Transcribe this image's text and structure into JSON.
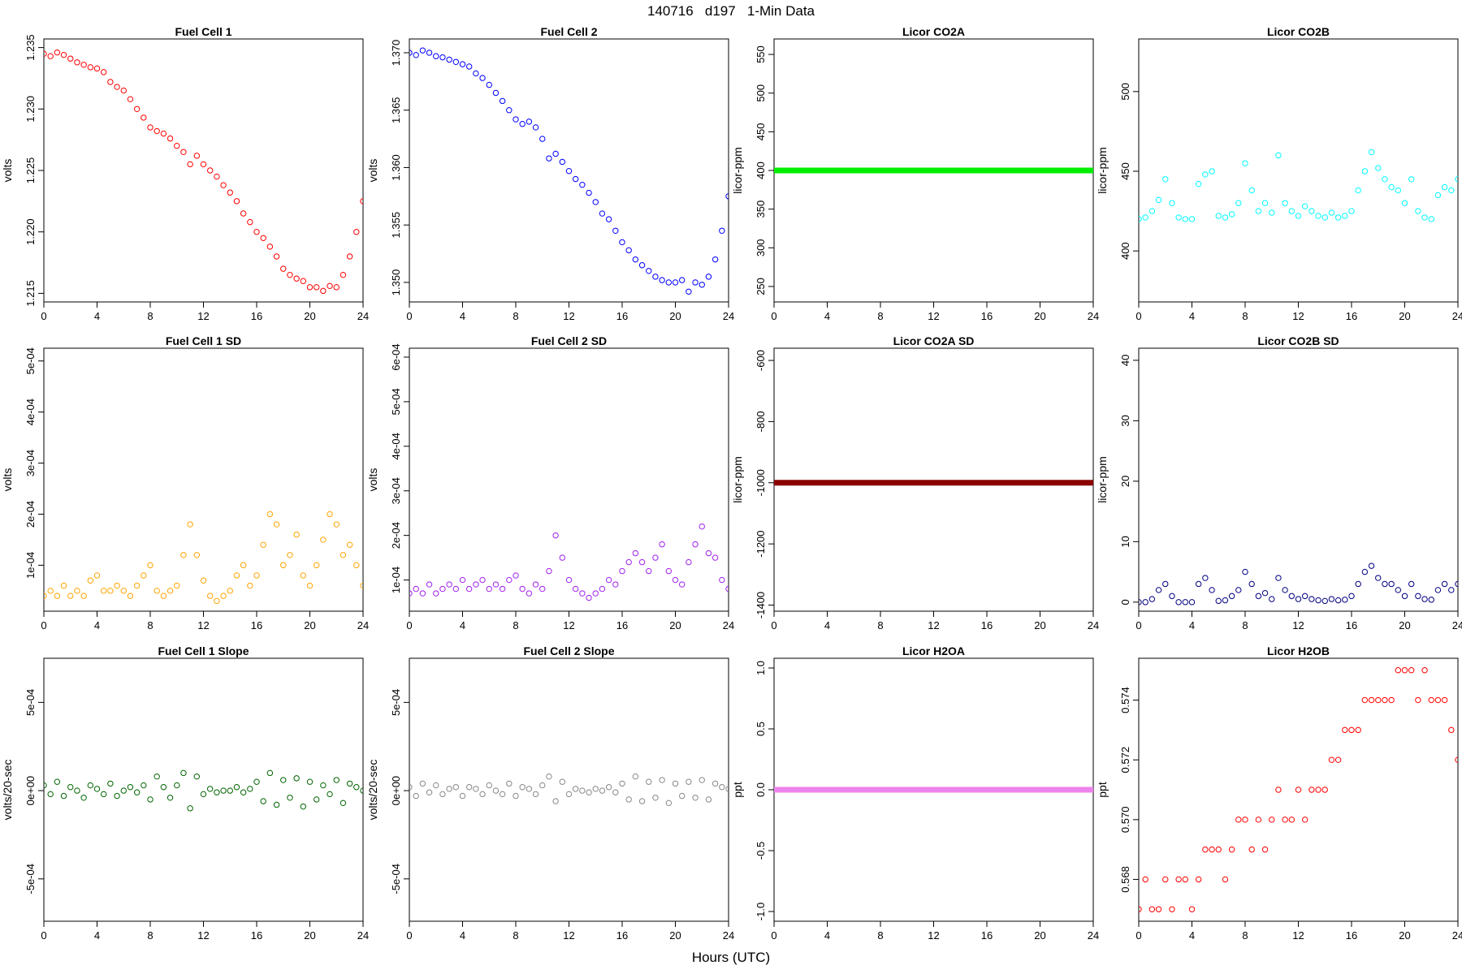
{
  "title": "140716   d197   1-Min Data",
  "xlabel": "Hours (UTC)",
  "chart_data": [
    {
      "type": "scatter",
      "title": "Fuel Cell 1",
      "ylabel": "volts",
      "xlim": [
        0,
        24
      ],
      "ylim": [
        1.2143,
        1.2357
      ],
      "xticks": [
        0,
        4,
        8,
        12,
        16,
        20,
        24
      ],
      "yticks": [
        1.215,
        1.22,
        1.225,
        1.23,
        1.235
      ],
      "ytick_labels": [
        "1.215",
        "1.220",
        "1.225",
        "1.230",
        "1.235"
      ],
      "color": "#ff0000",
      "x": [
        0,
        0.5,
        1,
        1.5,
        2,
        2.5,
        3,
        3.5,
        4,
        4.5,
        5,
        5.5,
        6,
        6.5,
        7,
        7.5,
        8,
        8.5,
        9,
        9.5,
        10,
        10.5,
        11,
        11.5,
        12,
        12.5,
        13,
        13.5,
        14,
        14.5,
        15,
        15.5,
        16,
        16.5,
        17,
        17.5,
        18,
        18.5,
        19,
        19.5,
        20,
        20.5,
        21,
        21.5,
        22,
        22.5,
        23,
        23.5,
        24
      ],
      "y": [
        1.2345,
        1.2343,
        1.2346,
        1.2344,
        1.2341,
        1.2338,
        1.2336,
        1.2334,
        1.2333,
        1.233,
        1.2322,
        1.2318,
        1.2315,
        1.2308,
        1.23,
        1.2293,
        1.2285,
        1.2282,
        1.228,
        1.2276,
        1.227,
        1.2265,
        1.2255,
        1.2262,
        1.2255,
        1.225,
        1.2245,
        1.2238,
        1.2232,
        1.2225,
        1.2215,
        1.2208,
        1.22,
        1.2195,
        1.2188,
        1.218,
        1.217,
        1.2165,
        1.2162,
        1.216,
        1.2155,
        1.2155,
        1.2152,
        1.2156,
        1.2155,
        1.2165,
        1.218,
        1.22,
        1.2225
      ]
    },
    {
      "type": "scatter",
      "title": "Fuel Cell 2",
      "ylabel": "volts",
      "xlim": [
        0,
        24
      ],
      "ylim": [
        1.3483,
        1.3712
      ],
      "xticks": [
        0,
        4,
        8,
        12,
        16,
        20,
        24
      ],
      "yticks": [
        1.35,
        1.355,
        1.36,
        1.365,
        1.37
      ],
      "ytick_labels": [
        "1.350",
        "1.355",
        "1.360",
        "1.365",
        "1.370"
      ],
      "color": "#0000ff",
      "x": [
        0,
        0.5,
        1,
        1.5,
        2,
        2.5,
        3,
        3.5,
        4,
        4.5,
        5,
        5.5,
        6,
        6.5,
        7,
        7.5,
        8,
        8.5,
        9,
        9.5,
        10,
        10.5,
        11,
        11.5,
        12,
        12.5,
        13,
        13.5,
        14,
        14.5,
        15,
        15.5,
        16,
        16.5,
        17,
        17.5,
        18,
        18.5,
        19,
        19.5,
        20,
        20.5,
        21,
        21.5,
        22,
        22.5,
        23,
        23.5,
        24
      ],
      "y": [
        1.37,
        1.3698,
        1.3702,
        1.37,
        1.3697,
        1.3696,
        1.3694,
        1.3692,
        1.369,
        1.3688,
        1.3682,
        1.3678,
        1.3672,
        1.3665,
        1.3658,
        1.365,
        1.3642,
        1.3638,
        1.364,
        1.3635,
        1.3625,
        1.3608,
        1.3612,
        1.3605,
        1.3597,
        1.359,
        1.3585,
        1.3578,
        1.357,
        1.356,
        1.3555,
        1.3545,
        1.3535,
        1.3528,
        1.352,
        1.3515,
        1.351,
        1.3505,
        1.3502,
        1.35,
        1.35,
        1.3502,
        1.3492,
        1.35,
        1.3498,
        1.3505,
        1.352,
        1.3545,
        1.3575
      ]
    },
    {
      "type": "scatter",
      "title": "Licor CO2A",
      "ylabel": "licor-ppm",
      "xlim": [
        0,
        24
      ],
      "ylim": [
        230,
        570
      ],
      "xticks": [
        0,
        4,
        8,
        12,
        16,
        20,
        24
      ],
      "yticks": [
        250,
        300,
        350,
        400,
        450,
        500,
        550
      ],
      "ytick_labels": [
        "250",
        "300",
        "350",
        "400",
        "450",
        "500",
        "550"
      ],
      "color": "#00ee00",
      "x": [
        0,
        24
      ],
      "y": [
        400,
        400
      ]
    },
    {
      "type": "scatter",
      "title": "Licor CO2B",
      "ylabel": "licor-ppm",
      "xlim": [
        0,
        24
      ],
      "ylim": [
        368,
        533
      ],
      "xticks": [
        0,
        4,
        8,
        12,
        16,
        20,
        24
      ],
      "yticks": [
        400,
        450,
        500
      ],
      "ytick_labels": [
        "400",
        "450",
        "500"
      ],
      "color": "#00ffff",
      "x": [
        0,
        0.5,
        1,
        1.5,
        2,
        2.5,
        3,
        3.5,
        4,
        4.5,
        5,
        5.5,
        6,
        6.5,
        7,
        7.5,
        8,
        8.5,
        9,
        9.5,
        10,
        10.5,
        11,
        11.5,
        12,
        12.5,
        13,
        13.5,
        14,
        14.5,
        15,
        15.5,
        16,
        16.5,
        17,
        17.5,
        18,
        18.5,
        19,
        19.5,
        20,
        20.5,
        21,
        21.5,
        22,
        22.5,
        23,
        23.5,
        24
      ],
      "y": [
        420,
        421,
        425,
        432,
        445,
        430,
        421,
        420,
        420,
        442,
        448,
        450,
        422,
        421,
        423,
        430,
        455,
        438,
        425,
        430,
        424,
        460,
        430,
        425,
        422,
        428,
        425,
        422,
        421,
        424,
        421,
        422,
        425,
        438,
        450,
        462,
        452,
        445,
        440,
        438,
        430,
        445,
        425,
        421,
        420,
        435,
        440,
        438,
        445
      ]
    },
    {
      "type": "scatter",
      "title": "Fuel Cell 1 SD",
      "ylabel": "volts",
      "xlim": [
        0,
        24
      ],
      "ylim": [
        1e-05,
        0.000525
      ],
      "xticks": [
        0,
        4,
        8,
        12,
        16,
        20,
        24
      ],
      "yticks": [
        0.0001,
        0.0002,
        0.0003,
        0.0004,
        0.0005
      ],
      "ytick_labels": [
        "1e-04",
        "2e-04",
        "3e-04",
        "4e-04",
        "5e-04"
      ],
      "color": "#ffa500",
      "x": [
        0,
        0.5,
        1,
        1.5,
        2,
        2.5,
        3,
        3.5,
        4,
        4.5,
        5,
        5.5,
        6,
        6.5,
        7,
        7.5,
        8,
        8.5,
        9,
        9.5,
        10,
        10.5,
        11,
        11.5,
        12,
        12.5,
        13,
        13.5,
        14,
        14.5,
        15,
        15.5,
        16,
        16.5,
        17,
        17.5,
        18,
        18.5,
        19,
        19.5,
        20,
        20.5,
        21,
        21.5,
        22,
        22.5,
        23,
        23.5,
        24
      ],
      "y": [
        4e-05,
        5e-05,
        4e-05,
        6e-05,
        4e-05,
        5e-05,
        4e-05,
        7e-05,
        8e-05,
        5e-05,
        5e-05,
        6e-05,
        5e-05,
        4e-05,
        6e-05,
        8e-05,
        0.0001,
        5e-05,
        4e-05,
        5e-05,
        6e-05,
        0.00012,
        0.00018,
        0.00012,
        7e-05,
        4e-05,
        3e-05,
        4e-05,
        5e-05,
        8e-05,
        0.0001,
        6e-05,
        8e-05,
        0.00014,
        0.0002,
        0.00018,
        0.0001,
        0.00012,
        0.00016,
        8e-05,
        6e-05,
        0.0001,
        0.00015,
        0.0002,
        0.00018,
        0.00012,
        0.00014,
        0.0001,
        6e-05
      ]
    },
    {
      "type": "scatter",
      "title": "Fuel Cell 2 SD",
      "ylabel": "volts",
      "xlim": [
        0,
        24
      ],
      "ylim": [
        3e-05,
        0.00062
      ],
      "xticks": [
        0,
        4,
        8,
        12,
        16,
        20,
        24
      ],
      "yticks": [
        0.0001,
        0.0002,
        0.0003,
        0.0004,
        0.0005,
        0.0006
      ],
      "ytick_labels": [
        "1e-04",
        "2e-04",
        "3e-04",
        "4e-04",
        "5e-04",
        "6e-04"
      ],
      "color": "#a020f0",
      "x": [
        0,
        0.5,
        1,
        1.5,
        2,
        2.5,
        3,
        3.5,
        4,
        4.5,
        5,
        5.5,
        6,
        6.5,
        7,
        7.5,
        8,
        8.5,
        9,
        9.5,
        10,
        10.5,
        11,
        11.5,
        12,
        12.5,
        13,
        13.5,
        14,
        14.5,
        15,
        15.5,
        16,
        16.5,
        17,
        17.5,
        18,
        18.5,
        19,
        19.5,
        20,
        20.5,
        21,
        21.5,
        22,
        22.5,
        23,
        23.5,
        24
      ],
      "y": [
        7e-05,
        8e-05,
        7e-05,
        9e-05,
        7e-05,
        8e-05,
        9e-05,
        8e-05,
        0.0001,
        8e-05,
        9e-05,
        0.0001,
        8e-05,
        9e-05,
        8e-05,
        0.0001,
        0.00011,
        8e-05,
        7e-05,
        9e-05,
        8e-05,
        0.00012,
        0.0002,
        0.00015,
        0.0001,
        8e-05,
        7e-05,
        6e-05,
        7e-05,
        8e-05,
        0.0001,
        9e-05,
        0.00012,
        0.00014,
        0.00016,
        0.00014,
        0.00012,
        0.00015,
        0.00018,
        0.00012,
        0.0001,
        9e-05,
        0.00014,
        0.00018,
        0.00022,
        0.00016,
        0.00015,
        0.0001,
        8e-05
      ]
    },
    {
      "type": "scatter",
      "title": "Licor CO2A SD",
      "ylabel": "licor-ppm",
      "xlim": [
        0,
        24
      ],
      "ylim": [
        -1420,
        -560
      ],
      "xticks": [
        0,
        4,
        8,
        12,
        16,
        20,
        24
      ],
      "yticks": [
        -1400,
        -1200,
        -1000,
        -800,
        -600
      ],
      "ytick_labels": [
        "-1400",
        "-1200",
        "-1000",
        "-800",
        "-600"
      ],
      "color": "#8b0000",
      "x": [
        0,
        24
      ],
      "y": [
        -1000,
        -1000
      ]
    },
    {
      "type": "scatter",
      "title": "Licor CO2B SD",
      "ylabel": "licor-ppm",
      "xlim": [
        0,
        24
      ],
      "ylim": [
        -1.5,
        42
      ],
      "xticks": [
        0,
        4,
        8,
        12,
        16,
        20,
        24
      ],
      "yticks": [
        0,
        10,
        20,
        30,
        40
      ],
      "ytick_labels": [
        "0",
        "10",
        "20",
        "30",
        "40"
      ],
      "color": "#000080",
      "x": [
        0,
        0.5,
        1,
        1.5,
        2,
        2.5,
        3,
        3.5,
        4,
        4.5,
        5,
        5.5,
        6,
        6.5,
        7,
        7.5,
        8,
        8.5,
        9,
        9.5,
        10,
        10.5,
        11,
        11.5,
        12,
        12.5,
        13,
        13.5,
        14,
        14.5,
        15,
        15.5,
        16,
        16.5,
        17,
        17.5,
        18,
        18.5,
        19,
        19.5,
        20,
        20.5,
        21,
        21.5,
        22,
        22.5,
        23,
        23.5,
        24
      ],
      "y": [
        0,
        0,
        0.5,
        2,
        3,
        1,
        0,
        0,
        0,
        3,
        4,
        2,
        0.2,
        0.3,
        1,
        2,
        5,
        3,
        1,
        1.5,
        0.5,
        4,
        2,
        1,
        0.5,
        1,
        0.5,
        0.3,
        0.2,
        0.5,
        0.3,
        0.4,
        1,
        3,
        5,
        6,
        4,
        3,
        3,
        2,
        1,
        3,
        1,
        0.5,
        0.4,
        2,
        3,
        2,
        3
      ]
    },
    {
      "type": "scatter",
      "title": "Fuel Cell 1 Slope",
      "ylabel": "volts/20-sec",
      "xlim": [
        0,
        24
      ],
      "ylim": [
        -0.00074,
        0.00075
      ],
      "xticks": [
        0,
        4,
        8,
        12,
        16,
        20,
        24
      ],
      "yticks": [
        -0.0005,
        0,
        0.0005
      ],
      "ytick_labels": [
        "-5e-04",
        "0e+00",
        "5e-04"
      ],
      "color": "#006400",
      "x": [
        0,
        0.5,
        1,
        1.5,
        2,
        2.5,
        3,
        3.5,
        4,
        4.5,
        5,
        5.5,
        6,
        6.5,
        7,
        7.5,
        8,
        8.5,
        9,
        9.5,
        10,
        10.5,
        11,
        11.5,
        12,
        12.5,
        13,
        13.5,
        14,
        14.5,
        15,
        15.5,
        16,
        16.5,
        17,
        17.5,
        18,
        18.5,
        19,
        19.5,
        20,
        20.5,
        21,
        21.5,
        22,
        22.5,
        23,
        23.5,
        24
      ],
      "y": [
        3e-05,
        -2e-05,
        5e-05,
        -3e-05,
        2e-05,
        0,
        -4e-05,
        3e-05,
        1e-05,
        -2e-05,
        4e-05,
        -3e-05,
        0,
        2e-05,
        -1e-05,
        3e-05,
        -5e-05,
        8e-05,
        2e-05,
        -4e-05,
        3e-05,
        0.0001,
        -0.0001,
        8e-05,
        -2e-05,
        1e-05,
        -1e-05,
        0,
        0,
        2e-05,
        -1e-05,
        1e-05,
        5e-05,
        -6e-05,
        0.0001,
        -8e-05,
        6e-05,
        -4e-05,
        7e-05,
        -9e-05,
        5e-05,
        -5e-05,
        3e-05,
        -2e-05,
        6e-05,
        -7e-05,
        4e-05,
        2e-05,
        0
      ]
    },
    {
      "type": "scatter",
      "title": "Fuel Cell 2 Slope",
      "ylabel": "volts/20-sec",
      "xlim": [
        0,
        24
      ],
      "ylim": [
        -0.00074,
        0.00075
      ],
      "xticks": [
        0,
        4,
        8,
        12,
        16,
        20,
        24
      ],
      "yticks": [
        -0.0005,
        0,
        0.0005
      ],
      "ytick_labels": [
        "-5e-04",
        "0e+00",
        "5e-04"
      ],
      "color": "#888888",
      "x": [
        0,
        0.5,
        1,
        1.5,
        2,
        2.5,
        3,
        3.5,
        4,
        4.5,
        5,
        5.5,
        6,
        6.5,
        7,
        7.5,
        8,
        8.5,
        9,
        9.5,
        10,
        10.5,
        11,
        11.5,
        12,
        12.5,
        13,
        13.5,
        14,
        14.5,
        15,
        15.5,
        16,
        16.5,
        17,
        17.5,
        18,
        18.5,
        19,
        19.5,
        20,
        20.5,
        21,
        21.5,
        22,
        22.5,
        23,
        23.5,
        24
      ],
      "y": [
        2e-05,
        -3e-05,
        4e-05,
        -1e-05,
        3e-05,
        -2e-05,
        1e-05,
        2e-05,
        -3e-05,
        2e-05,
        1e-05,
        -2e-05,
        3e-05,
        0,
        -2e-05,
        4e-05,
        -3e-05,
        2e-05,
        1e-05,
        -2e-05,
        3e-05,
        8e-05,
        -6e-05,
        5e-05,
        -2e-05,
        1e-05,
        0,
        -1e-05,
        1e-05,
        0,
        2e-05,
        -1e-05,
        4e-05,
        -5e-05,
        8e-05,
        -6e-05,
        5e-05,
        -4e-05,
        6e-05,
        -7e-05,
        4e-05,
        -3e-05,
        5e-05,
        -4e-05,
        6e-05,
        -5e-05,
        4e-05,
        2e-05,
        1e-05
      ]
    },
    {
      "type": "scatter",
      "title": "Licor H2OA",
      "ylabel": "ppt",
      "xlim": [
        0,
        24
      ],
      "ylim": [
        -1.08,
        1.08
      ],
      "xticks": [
        0,
        4,
        8,
        12,
        16,
        20,
        24
      ],
      "yticks": [
        -1.0,
        -0.5,
        0.0,
        0.5,
        1.0
      ],
      "ytick_labels": [
        "-1.0",
        "-0.5",
        "0.0",
        "0.5",
        "1.0"
      ],
      "color": "#ee82ee",
      "x": [
        0,
        24
      ],
      "y": [
        0,
        0
      ]
    },
    {
      "type": "scatter",
      "title": "Licor H2OB",
      "ylabel": "ppt",
      "xlim": [
        0,
        24
      ],
      "ylim": [
        0.5666,
        0.5754
      ],
      "xticks": [
        0,
        4,
        8,
        12,
        16,
        20,
        24
      ],
      "yticks": [
        0.568,
        0.57,
        0.572,
        0.574
      ],
      "ytick_labels": [
        "0.568",
        "0.570",
        "0.572",
        "0.574"
      ],
      "color": "#ff0000",
      "x": [
        0,
        0.5,
        1,
        1.5,
        2,
        2.5,
        3,
        3.5,
        4,
        4.5,
        5,
        5.5,
        6,
        6.5,
        7,
        7.5,
        8,
        8.5,
        9,
        9.5,
        10,
        10.5,
        11,
        11.5,
        12,
        12.5,
        13,
        13.5,
        14,
        14.5,
        15,
        15.5,
        16,
        16.5,
        17,
        17.5,
        18,
        18.5,
        19,
        19.5,
        20,
        20.5,
        21,
        21.5,
        22,
        22.5,
        23,
        23.5,
        24
      ],
      "y": [
        0.567,
        0.568,
        0.567,
        0.567,
        0.568,
        0.567,
        0.568,
        0.568,
        0.567,
        0.568,
        0.569,
        0.569,
        0.569,
        0.568,
        0.569,
        0.57,
        0.57,
        0.569,
        0.57,
        0.569,
        0.57,
        0.571,
        0.57,
        0.57,
        0.571,
        0.57,
        0.571,
        0.571,
        0.571,
        0.572,
        0.572,
        0.573,
        0.573,
        0.573,
        0.574,
        0.574,
        0.574,
        0.574,
        0.574,
        0.575,
        0.575,
        0.575,
        0.574,
        0.575,
        0.574,
        0.574,
        0.574,
        0.573,
        0.572
      ]
    }
  ]
}
